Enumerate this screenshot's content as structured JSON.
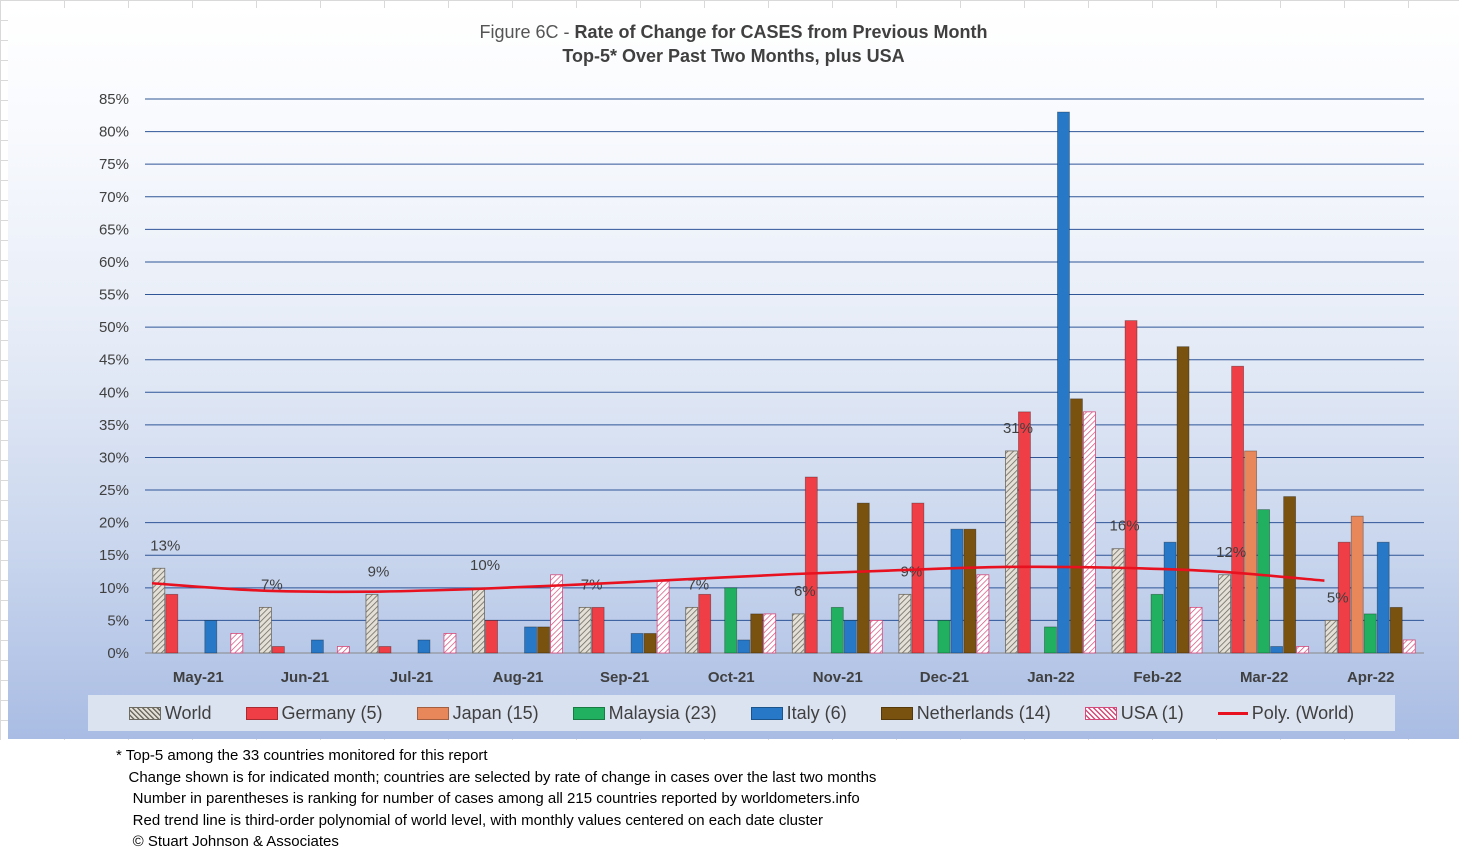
{
  "title": {
    "prefix": "Figure 6C - ",
    "main": "Rate of Change for CASES from Previous Month",
    "sub": "Top-5* Over Past Two Months, plus USA"
  },
  "chart_data": {
    "type": "bar",
    "categories": [
      "May-21",
      "Jun-21",
      "Jul-21",
      "Aug-21",
      "Sep-21",
      "Oct-21",
      "Nov-21",
      "Dec-21",
      "Jan-22",
      "Feb-22",
      "Mar-22",
      "Apr-22"
    ],
    "ylim": [
      0,
      85
    ],
    "yticks": [
      "0%",
      "5%",
      "10%",
      "15%",
      "20%",
      "25%",
      "30%",
      "35%",
      "40%",
      "45%",
      "50%",
      "55%",
      "60%",
      "65%",
      "70%",
      "75%",
      "80%",
      "85%"
    ],
    "grid": true,
    "legend_position": "bottom",
    "series": [
      {
        "name": "World",
        "color": "#d9d5cc",
        "pattern": "hatch-dark",
        "values": [
          13,
          7,
          9,
          10,
          7,
          7,
          6,
          9,
          31,
          16,
          12,
          5
        ]
      },
      {
        "name": "Germany (5)",
        "color": "#ef3e46",
        "values": [
          9,
          1,
          1,
          5,
          7,
          9,
          27,
          23,
          37,
          51,
          44,
          17
        ]
      },
      {
        "name": "Japan  (15)",
        "color": "#e8875a",
        "values": [
          0,
          0,
          0,
          0,
          0,
          0,
          0,
          0,
          0,
          0,
          31,
          21
        ]
      },
      {
        "name": "Malaysia (23)",
        "color": "#21b05f",
        "values": [
          0,
          0,
          0,
          0,
          0,
          10,
          7,
          5,
          4,
          9,
          22,
          6
        ]
      },
      {
        "name": "Italy (6)",
        "color": "#2878c8",
        "values": [
          5,
          2,
          2,
          4,
          3,
          2,
          5,
          19,
          83,
          17,
          1,
          17
        ]
      },
      {
        "name": "Netherlands (14)",
        "color": "#7a5210",
        "values": [
          0,
          0,
          0,
          4,
          3,
          6,
          23,
          19,
          39,
          47,
          24,
          7
        ]
      },
      {
        "name": "USA (1)",
        "color": "#ffffff",
        "pattern": "hatch-red",
        "values": [
          3,
          1,
          3,
          12,
          11,
          6,
          5,
          12,
          37,
          7,
          1,
          2
        ]
      }
    ],
    "world_labels": [
      "13%",
      "7%",
      "9%",
      "10%",
      "7%",
      "7%",
      "6%",
      "9%",
      "31%",
      "16%",
      "12%",
      "5%"
    ],
    "trend": {
      "name": "Poly. (World)",
      "color": "#e8111f",
      "values": [
        10.7,
        9.6,
        9.4,
        9.8,
        10.5,
        11.3,
        12.1,
        12.7,
        13.2,
        13.1,
        12.5,
        11.1
      ]
    }
  },
  "footnotes": [
    "* Top-5 among the 33 countries monitored for this report",
    "   Change shown is for indicated month; countries are selected by rate of change in cases over the last two months",
    "    Number in parentheses is ranking for number of cases among all 215 countries reported by worldometers.info",
    "    Red trend line is third-order polynomial of world level, with monthly values centered on each date cluster",
    "    © Stuart Johnson & Associates"
  ]
}
